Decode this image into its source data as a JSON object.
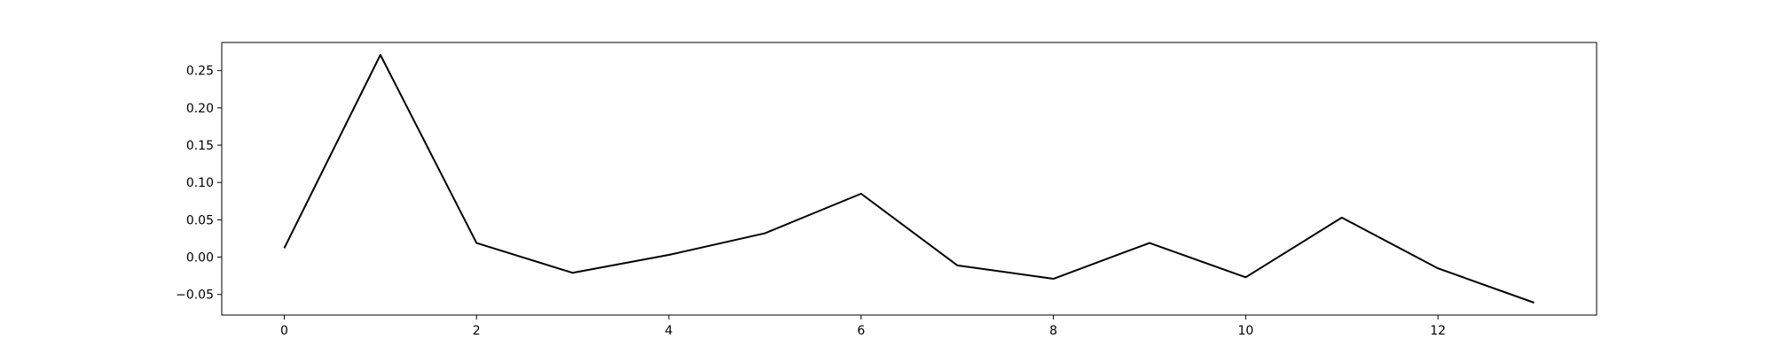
{
  "chart_data": {
    "type": "line",
    "title": "",
    "xlabel": "",
    "ylabel": "",
    "x": [
      0,
      1,
      2,
      3,
      4,
      5,
      6,
      7,
      8,
      9,
      10,
      11,
      12,
      13
    ],
    "series": [
      {
        "values": [
          0.012,
          0.271,
          0.019,
          -0.021,
          0.003,
          0.032,
          0.085,
          -0.011,
          -0.029,
          0.019,
          -0.027,
          0.053,
          -0.015,
          -0.061
        ],
        "color": "#000000"
      }
    ],
    "xlim": [
      -0.65,
      13.65
    ],
    "ylim": [
      -0.0776,
      0.2876
    ],
    "xticks": [
      0,
      2,
      4,
      6,
      8,
      10,
      12
    ],
    "xtick_labels": [
      "0",
      "2",
      "4",
      "6",
      "8",
      "10",
      "12"
    ],
    "yticks": [
      -0.05,
      0.0,
      0.05,
      0.1,
      0.15,
      0.2,
      0.25
    ],
    "ytick_labels": [
      "−0.05",
      "0.00",
      "0.05",
      "0.10",
      "0.15",
      "0.20",
      "0.25"
    ],
    "grid": false,
    "legend": "none"
  }
}
